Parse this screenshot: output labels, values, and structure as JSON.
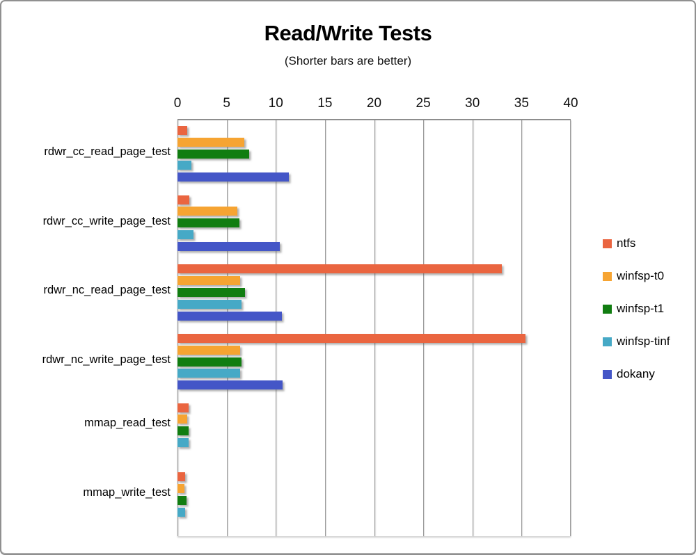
{
  "title": "Read/Write Tests",
  "subtitle": "(Shorter bars are better)",
  "chart_data": {
    "type": "bar",
    "orientation": "horizontal",
    "title": "Read/Write Tests",
    "subtitle": "(Shorter bars are better)",
    "xlabel": "",
    "ylabel": "",
    "xlim": [
      0,
      40
    ],
    "xticks": [
      0,
      5,
      10,
      15,
      20,
      25,
      30,
      35,
      40
    ],
    "grid": true,
    "legend_position": "right",
    "categories": [
      "rdwr_cc_read_page_test",
      "rdwr_cc_write_page_test",
      "rdwr_nc_read_page_test",
      "rdwr_nc_write_page_test",
      "mmap_read_test",
      "mmap_write_test"
    ],
    "series": [
      {
        "name": "ntfs",
        "color": "#EA6540",
        "values": [
          1.0,
          1.2,
          33.0,
          35.4,
          1.1,
          0.8
        ]
      },
      {
        "name": "winfsp-t0",
        "color": "#F6A432",
        "values": [
          6.8,
          6.1,
          6.4,
          6.4,
          1.0,
          0.7
        ]
      },
      {
        "name": "winfsp-t1",
        "color": "#117D11",
        "values": [
          7.3,
          6.3,
          6.9,
          6.5,
          1.1,
          0.9
        ]
      },
      {
        "name": "winfsp-tinf",
        "color": "#46A9C6",
        "values": [
          1.4,
          1.6,
          6.5,
          6.4,
          1.1,
          0.8
        ]
      },
      {
        "name": "dokany",
        "color": "#4456C7",
        "values": [
          11.3,
          10.4,
          10.6,
          10.7,
          0,
          0
        ]
      }
    ]
  }
}
